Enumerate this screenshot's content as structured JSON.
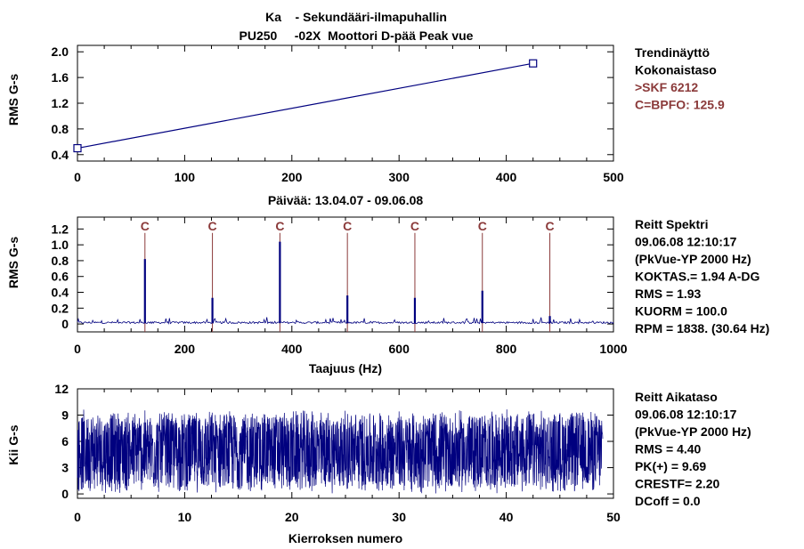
{
  "header": {
    "line1": "Ka    - Sekundääri-ilmapuhallin",
    "line2": "PU250     -02X  Moottori D-pää Peak vue"
  },
  "colors": {
    "trace": "#00007f",
    "marker": "#8b3a3a",
    "frame": "#000000"
  },
  "chart_data": [
    {
      "type": "line",
      "ylabel": "RMS G-s",
      "x": [
        0,
        425
      ],
      "y": [
        0.5,
        1.82
      ],
      "xlim": [
        0,
        500
      ],
      "ylim": [
        0.3,
        2.1
      ],
      "xticks": [
        "0",
        "100",
        "200",
        "300",
        "400",
        "500"
      ],
      "yticks": [
        "0.4",
        "0.8",
        "1.2",
        "1.6",
        "2.0"
      ],
      "date_range": "Päivää:  13.04.07    - 09.06.08",
      "side_text": [
        "Trendinäyttö",
        "Kokonaistaso"
      ],
      "side_text_accent": [
        ">SKF 6212",
        "C=BPFO: 125.9"
      ]
    },
    {
      "type": "line",
      "ylabel": "RMS G-s",
      "xlabel": "Taajuus (Hz)",
      "xlim": [
        0,
        1000
      ],
      "ylim": [
        -0.1,
        1.35
      ],
      "xticks": [
        "0",
        "200",
        "400",
        "600",
        "800",
        "1000"
      ],
      "yticks": [
        "0",
        "0.2",
        "0.4",
        "0.6",
        "0.8",
        "1.0",
        "1.2"
      ],
      "marker_label": "C",
      "markers": [
        125.9,
        251.8,
        377.7,
        503.6,
        629.5,
        755.4,
        881.3
      ],
      "peaks": [
        {
          "x": 125.9,
          "y": 0.82
        },
        {
          "x": 251.8,
          "y": 0.33
        },
        {
          "x": 377.7,
          "y": 1.04
        },
        {
          "x": 503.6,
          "y": 0.36
        },
        {
          "x": 629.5,
          "y": 0.33
        },
        {
          "x": 755.4,
          "y": 0.42
        },
        {
          "x": 881.3,
          "y": 0.1
        }
      ],
      "side_text": [
        "Reitt Spektri",
        "  09.06.08   12:10:17",
        "(PkVue-YP 2000 Hz)",
        "KOKTAS.= 1.94 A-DG",
        "  RMS =  1.93",
        "  KUORM = 100.0",
        "  RPM = 1838. (30.64 Hz)"
      ]
    },
    {
      "type": "line",
      "ylabel": "Kii      G-s",
      "xlabel": "Kierroksen numero",
      "xlim": [
        0,
        50
      ],
      "ylim": [
        -0.5,
        12
      ],
      "xticks": [
        "0",
        "10",
        "20",
        "30",
        "40",
        "50"
      ],
      "yticks": [
        "0",
        "3",
        "6",
        "9",
        "12"
      ],
      "signal_range": [
        0,
        9.69
      ],
      "signal_end": 49,
      "side_text": [
        "Reitt Aikataso",
        "  09.06.08   12:10:17",
        "(PkVue-YP 2000 Hz)",
        "  RMS =  4.40",
        "  PK(+) = 9.69",
        "  CRESTF= 2.20",
        "  DCoff = 0.0"
      ]
    }
  ]
}
